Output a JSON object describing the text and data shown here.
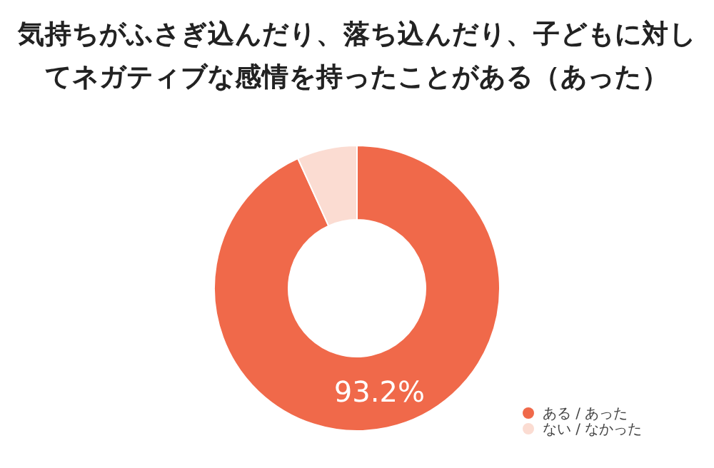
{
  "chart_data": {
    "type": "donut",
    "title": "気持ちがふさぎ込んだり、落ち込んだり、子どもに対してネガティブな感情を持ったことがある（あった）",
    "categories": [
      "ある / あった",
      "ない / なかった"
    ],
    "values": [
      93.2,
      6.8
    ],
    "colors": [
      "#f0694a",
      "#fbdcd2"
    ],
    "value_labels": [
      "93.2%",
      null
    ],
    "legend": "bottom right"
  }
}
